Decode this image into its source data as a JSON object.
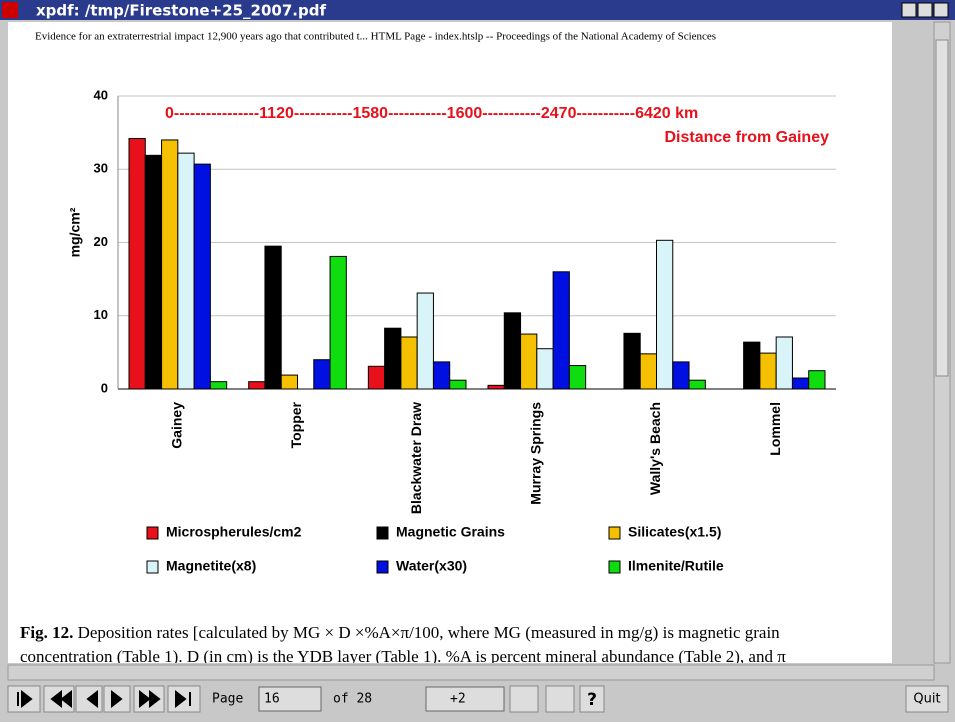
{
  "window": {
    "title": "xpdf: /tmp/Firestone+25_2007.pdf"
  },
  "header": "Evidence for an extraterrestrial impact 12,900 years ago that contributed t... HTML Page - index.htslp -- Proceedings of the National Academy of Sciences",
  "chart_data": {
    "type": "bar",
    "ylabel": "mg/cm²",
    "annotations": [
      "0----------------1120-----------1580-----------1600-----------2470-----------6420 km",
      "Distance from Gainey"
    ],
    "categories": [
      "Gainey",
      "Topper",
      "Blackwater Draw",
      "Murray Springs",
      "Wally's Beach",
      "Lommel"
    ],
    "series": [
      {
        "name": "Microspherules/cm2",
        "color": "#e8101a",
        "values": [
          34.2,
          1,
          3.1,
          0.5,
          0,
          0
        ]
      },
      {
        "name": "Magnetic Grains",
        "color": "#000000",
        "values": [
          31.9,
          19.5,
          8.3,
          10.4,
          7.6,
          6.4
        ]
      },
      {
        "name": "Silicates(x1.5)",
        "color": "#f5c000",
        "values": [
          34,
          1.9,
          7.1,
          7.5,
          4.8,
          4.9
        ]
      },
      {
        "name": "Magnetite(x8)",
        "color": "#d8f4f8",
        "values": [
          32.2,
          0,
          13.1,
          5.5,
          20.3,
          7.1
        ]
      },
      {
        "name": "Water(x30)",
        "color": "#0010e0",
        "values": [
          30.7,
          4,
          3.7,
          16,
          3.7,
          1.5
        ]
      },
      {
        "name": "Ilmenite/Rutile",
        "color": "#10dd10",
        "values": [
          1,
          18.1,
          1.2,
          3.2,
          1.2,
          2.5
        ]
      }
    ],
    "ylim": [
      0,
      40
    ],
    "yticks": [
      0,
      10,
      20,
      30,
      40
    ],
    "grid": true
  },
  "caption": {
    "label": "Fig. 12.",
    "lines": [
      "Deposition rates [calculated by MG × D ×%A×π/100, where MG (measured in mg/g) is magnetic grain",
      "concentration (Table 1). D (in cm) is the YDB layer (Table 1). %A is percent mineral abundance (Table 2), and π"
    ]
  },
  "toolbar": {
    "page_label": "Page",
    "page": "16",
    "of": "of 28",
    "zoom": "+2",
    "quit": "Quit"
  }
}
